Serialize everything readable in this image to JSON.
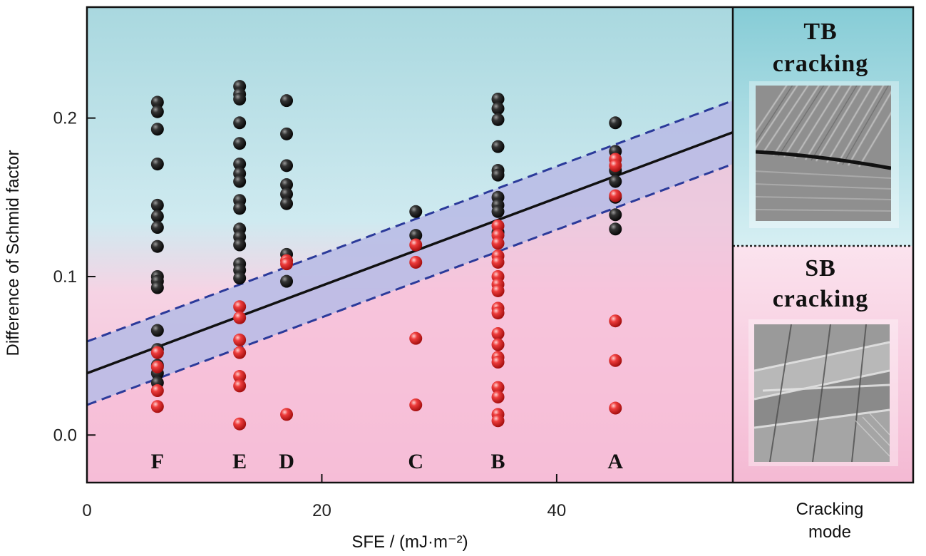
{
  "chart_data": {
    "type": "scatter",
    "xlabel": "SFE / (mJ·m⁻²)",
    "ylabel": "Difference of Schmid factor",
    "xlim": [
      0,
      55
    ],
    "ylim": [
      -0.03,
      0.27
    ],
    "x_ticks": [
      0,
      20,
      40
    ],
    "x_tick_labels": [
      "0",
      "20",
      "40"
    ],
    "y_ticks": [
      0.0,
      0.1,
      0.2
    ],
    "y_tick_labels": [
      "0.0",
      "0.1",
      "0.2"
    ],
    "grid": false,
    "regions": {
      "upper_color": "#bfe3ea",
      "lower_color": "#f7bfd8",
      "band_color": "#b9bde6"
    },
    "fit_line": {
      "x": [
        0,
        55
      ],
      "y": [
        0.039,
        0.191
      ]
    },
    "band_upper": {
      "x": [
        0,
        55
      ],
      "y": [
        0.059,
        0.211
      ]
    },
    "band_lower": {
      "x": [
        0,
        55
      ],
      "y": [
        0.019,
        0.171
      ]
    },
    "categories": [
      {
        "label": "F",
        "x": 6
      },
      {
        "label": "E",
        "x": 13
      },
      {
        "label": "D",
        "x": 17
      },
      {
        "label": "C",
        "x": 28
      },
      {
        "label": "B",
        "x": 35
      },
      {
        "label": "A",
        "x": 45
      }
    ],
    "series": [
      {
        "color": "#1a1a1a",
        "points": [
          [
            6,
            0.21
          ],
          [
            6,
            0.204
          ],
          [
            6,
            0.193
          ],
          [
            6,
            0.171
          ],
          [
            6,
            0.145
          ],
          [
            6,
            0.138
          ],
          [
            6,
            0.131
          ],
          [
            6,
            0.119
          ],
          [
            6,
            0.1
          ],
          [
            6,
            0.097
          ],
          [
            6,
            0.093
          ],
          [
            6,
            0.066
          ],
          [
            6,
            0.054
          ],
          [
            6,
            0.044
          ],
          [
            6,
            0.039
          ],
          [
            6,
            0.033
          ],
          [
            13,
            0.22
          ],
          [
            13,
            0.215
          ],
          [
            13,
            0.212
          ],
          [
            13,
            0.197
          ],
          [
            13,
            0.184
          ],
          [
            13,
            0.171
          ],
          [
            13,
            0.165
          ],
          [
            13,
            0.16
          ],
          [
            13,
            0.148
          ],
          [
            13,
            0.143
          ],
          [
            13,
            0.13
          ],
          [
            13,
            0.125
          ],
          [
            13,
            0.12
          ],
          [
            13,
            0.108
          ],
          [
            13,
            0.104
          ],
          [
            13,
            0.099
          ],
          [
            17,
            0.211
          ],
          [
            17,
            0.19
          ],
          [
            17,
            0.17
          ],
          [
            17,
            0.158
          ],
          [
            17,
            0.152
          ],
          [
            17,
            0.146
          ],
          [
            17,
            0.114
          ],
          [
            17,
            0.097
          ],
          [
            28,
            0.141
          ],
          [
            28,
            0.126
          ],
          [
            35,
            0.212
          ],
          [
            35,
            0.206
          ],
          [
            35,
            0.199
          ],
          [
            35,
            0.182
          ],
          [
            35,
            0.167
          ],
          [
            35,
            0.164
          ],
          [
            35,
            0.15
          ],
          [
            35,
            0.145
          ],
          [
            35,
            0.141
          ],
          [
            35,
            0.128
          ],
          [
            45,
            0.197
          ],
          [
            45,
            0.179
          ],
          [
            45,
            0.167
          ],
          [
            45,
            0.16
          ],
          [
            45,
            0.15
          ],
          [
            45,
            0.139
          ],
          [
            45,
            0.13
          ]
        ]
      },
      {
        "color": "#e83a3a",
        "points": [
          [
            6,
            0.052
          ],
          [
            6,
            0.043
          ],
          [
            6,
            0.028
          ],
          [
            6,
            0.018
          ],
          [
            13,
            0.081
          ],
          [
            13,
            0.074
          ],
          [
            13,
            0.06
          ],
          [
            13,
            0.052
          ],
          [
            13,
            0.037
          ],
          [
            13,
            0.031
          ],
          [
            13,
            0.007
          ],
          [
            17,
            0.11
          ],
          [
            17,
            0.108
          ],
          [
            17,
            0.013
          ],
          [
            28,
            0.12
          ],
          [
            28,
            0.109
          ],
          [
            28,
            0.061
          ],
          [
            28,
            0.019
          ],
          [
            35,
            0.132
          ],
          [
            35,
            0.126
          ],
          [
            35,
            0.121
          ],
          [
            35,
            0.113
          ],
          [
            35,
            0.109
          ],
          [
            35,
            0.1
          ],
          [
            35,
            0.095
          ],
          [
            35,
            0.091
          ],
          [
            35,
            0.08
          ],
          [
            35,
            0.077
          ],
          [
            35,
            0.064
          ],
          [
            35,
            0.057
          ],
          [
            35,
            0.049
          ],
          [
            35,
            0.046
          ],
          [
            35,
            0.03
          ],
          [
            35,
            0.024
          ],
          [
            35,
            0.013
          ],
          [
            35,
            0.009
          ],
          [
            45,
            0.174
          ],
          [
            45,
            0.17
          ],
          [
            45,
            0.151
          ],
          [
            45,
            0.072
          ],
          [
            45,
            0.047
          ],
          [
            45,
            0.017
          ]
        ]
      }
    ]
  },
  "side_panel": {
    "top_title_line1": "TB",
    "top_title_line2": "cracking",
    "bottom_title_line1": "SB",
    "bottom_title_line2": "cracking",
    "xlabel_line1": "Cracking",
    "xlabel_line2": "mode"
  }
}
